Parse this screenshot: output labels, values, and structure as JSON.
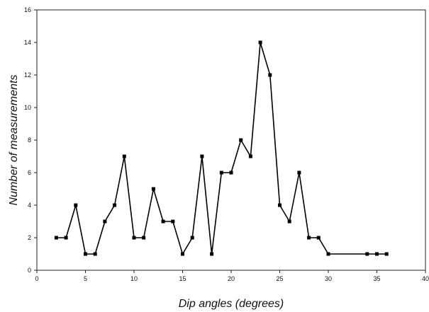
{
  "chart_data": {
    "type": "line",
    "xlabel": "Dip angles (degrees)",
    "ylabel": "Number of measurements",
    "xlim": [
      0,
      40
    ],
    "ylim": [
      0,
      16
    ],
    "xticks": [
      0,
      5,
      10,
      15,
      20,
      25,
      30,
      35,
      40
    ],
    "yticks": [
      0,
      2,
      4,
      6,
      8,
      10,
      12,
      14,
      16
    ],
    "grid": false,
    "legend": "none",
    "series": [
      {
        "color": "#000000",
        "marker": "square",
        "points": [
          [
            2,
            2
          ],
          [
            3,
            2
          ],
          [
            4,
            4
          ],
          [
            5,
            1
          ],
          [
            6,
            1
          ],
          [
            7,
            3
          ],
          [
            8,
            4
          ],
          [
            9,
            7
          ],
          [
            10,
            2
          ],
          [
            11,
            2
          ],
          [
            12,
            5
          ],
          [
            13,
            3
          ],
          [
            14,
            3
          ],
          [
            15,
            1
          ],
          [
            16,
            2
          ],
          [
            17,
            7
          ],
          [
            18,
            1
          ],
          [
            19,
            6
          ],
          [
            20,
            6
          ],
          [
            21,
            8
          ],
          [
            22,
            7
          ],
          [
            23,
            14
          ],
          [
            24,
            12
          ],
          [
            25,
            4
          ],
          [
            26,
            3
          ],
          [
            27,
            6
          ],
          [
            28,
            2
          ],
          [
            29,
            2
          ],
          [
            30,
            1
          ],
          [
            34,
            1
          ],
          [
            35,
            1
          ],
          [
            36,
            1
          ]
        ]
      }
    ]
  }
}
